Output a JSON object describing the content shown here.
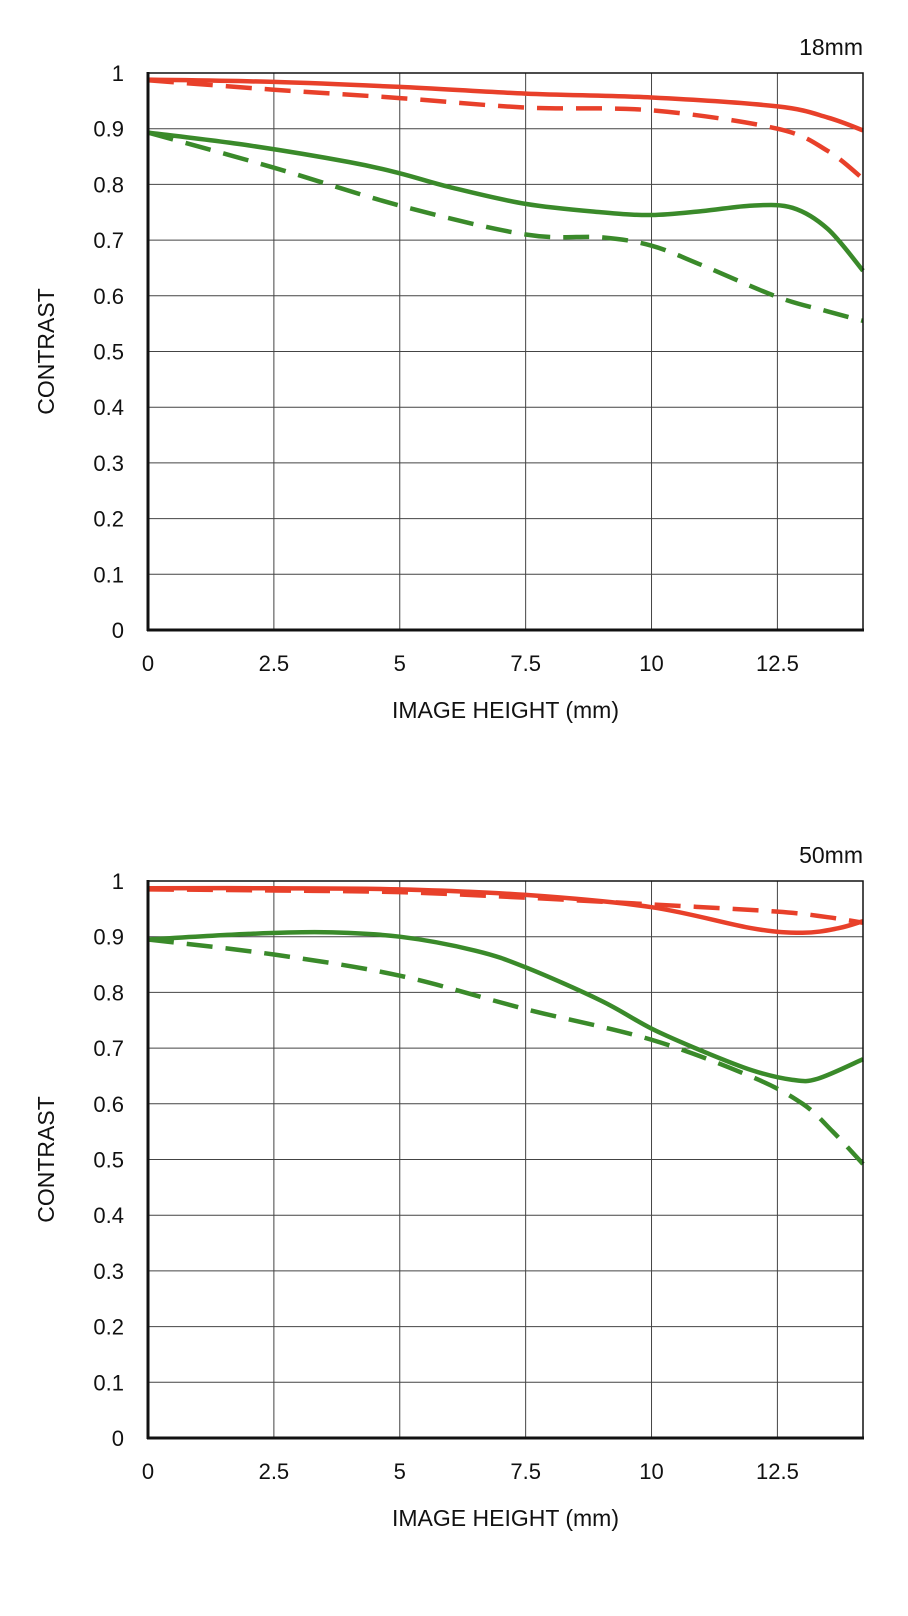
{
  "chart_data": [
    {
      "type": "line",
      "title": "18mm",
      "xlabel": "IMAGE HEIGHT (mm)",
      "ylabel": "CONTRAST",
      "xlim": [
        0,
        14.2
      ],
      "ylim": [
        0,
        1
      ],
      "x_ticks": [
        "0",
        "2.5",
        "5",
        "7.5",
        "10",
        "12.5"
      ],
      "y_ticks": [
        "0",
        "0.1",
        "0.2",
        "0.3",
        "0.4",
        "0.5",
        "0.6",
        "0.7",
        "0.8",
        "0.9",
        "1"
      ],
      "grid": true,
      "series": [
        {
          "color": "#e8402a",
          "dash": "solid",
          "points": [
            [
              0,
              0.988
            ],
            [
              2.5,
              0.984
            ],
            [
              5,
              0.975
            ],
            [
              7.5,
              0.963
            ],
            [
              10,
              0.956
            ],
            [
              12.5,
              0.94
            ],
            [
              13.5,
              0.92
            ],
            [
              14.2,
              0.897
            ]
          ]
        },
        {
          "color": "#e8402a",
          "dash": "dashed",
          "points": [
            [
              0,
              0.987
            ],
            [
              2.5,
              0.97
            ],
            [
              5,
              0.955
            ],
            [
              7.5,
              0.938
            ],
            [
              10,
              0.933
            ],
            [
              12.5,
              0.9
            ],
            [
              13.5,
              0.86
            ],
            [
              14.2,
              0.81
            ]
          ]
        },
        {
          "color": "#3a8a2a",
          "dash": "solid",
          "points": [
            [
              0,
              0.893
            ],
            [
              2,
              0.87
            ],
            [
              4,
              0.84
            ],
            [
              5,
              0.82
            ],
            [
              6,
              0.795
            ],
            [
              7.5,
              0.765
            ],
            [
              9,
              0.75
            ],
            [
              10,
              0.745
            ],
            [
              11,
              0.752
            ],
            [
              12,
              0.762
            ],
            [
              12.8,
              0.758
            ],
            [
              13.5,
              0.72
            ],
            [
              14.2,
              0.645
            ]
          ]
        },
        {
          "color": "#3a8a2a",
          "dash": "dashed",
          "points": [
            [
              0,
              0.893
            ],
            [
              2.5,
              0.83
            ],
            [
              5,
              0.762
            ],
            [
              7.5,
              0.71
            ],
            [
              9,
              0.705
            ],
            [
              10,
              0.69
            ],
            [
              11,
              0.655
            ],
            [
              12.5,
              0.598
            ],
            [
              13.5,
              0.572
            ],
            [
              14.2,
              0.555
            ]
          ]
        }
      ]
    },
    {
      "type": "line",
      "title": "50mm",
      "xlabel": "IMAGE HEIGHT (mm)",
      "ylabel": "CONTRAST",
      "xlim": [
        0,
        14.2
      ],
      "ylim": [
        0,
        1
      ],
      "x_ticks": [
        "0",
        "2.5",
        "5",
        "7.5",
        "10",
        "12.5"
      ],
      "y_ticks": [
        "0",
        "0.1",
        "0.2",
        "0.3",
        "0.4",
        "0.5",
        "0.6",
        "0.7",
        "0.8",
        "0.9",
        "1"
      ],
      "grid": true,
      "series": [
        {
          "color": "#e8402a",
          "dash": "solid",
          "points": [
            [
              0,
              0.987
            ],
            [
              2.5,
              0.987
            ],
            [
              5,
              0.985
            ],
            [
              7.5,
              0.975
            ],
            [
              10,
              0.953
            ],
            [
              12,
              0.915
            ],
            [
              13,
              0.907
            ],
            [
              13.7,
              0.915
            ],
            [
              14.2,
              0.928
            ]
          ]
        },
        {
          "color": "#e8402a",
          "dash": "dashed",
          "points": [
            [
              0,
              0.985
            ],
            [
              2.5,
              0.983
            ],
            [
              5,
              0.98
            ],
            [
              7.5,
              0.97
            ],
            [
              10,
              0.958
            ],
            [
              12.5,
              0.945
            ],
            [
              13.5,
              0.935
            ],
            [
              14.2,
              0.925
            ]
          ]
        },
        {
          "color": "#3a8a2a",
          "dash": "solid",
          "points": [
            [
              0,
              0.895
            ],
            [
              2,
              0.905
            ],
            [
              3.5,
              0.908
            ],
            [
              5,
              0.9
            ],
            [
              6.5,
              0.875
            ],
            [
              7.5,
              0.845
            ],
            [
              9,
              0.785
            ],
            [
              10,
              0.735
            ],
            [
              11,
              0.695
            ],
            [
              12,
              0.66
            ],
            [
              12.8,
              0.643
            ],
            [
              13.3,
              0.645
            ],
            [
              14.2,
              0.68
            ]
          ]
        },
        {
          "color": "#3a8a2a",
          "dash": "dashed",
          "points": [
            [
              0,
              0.895
            ],
            [
              2.5,
              0.868
            ],
            [
              5,
              0.83
            ],
            [
              7.5,
              0.77
            ],
            [
              10,
              0.715
            ],
            [
              12,
              0.648
            ],
            [
              13,
              0.6
            ],
            [
              13.6,
              0.55
            ],
            [
              14.2,
              0.492
            ]
          ]
        }
      ]
    }
  ]
}
